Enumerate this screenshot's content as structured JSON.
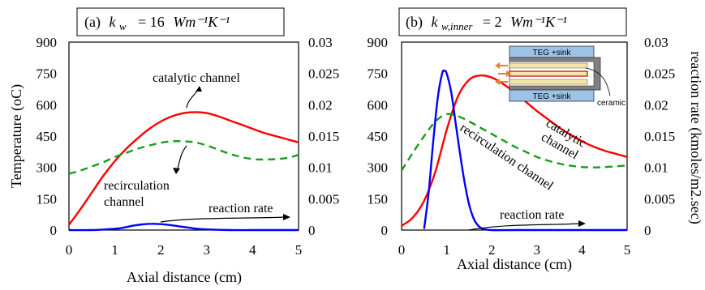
{
  "chart_data": [
    {
      "type": "line",
      "panel_label": "(a)",
      "title_symbol": "k",
      "title_subscript": "w",
      "title_value": "= 16",
      "title_units": "Wm⁻¹K⁻¹",
      "xlabel": "Axial distance (cm)",
      "ylabel": "Temperature (oC)",
      "y2label": "",
      "xlim": [
        0,
        5
      ],
      "ylim": [
        0,
        900
      ],
      "y2lim": [
        0,
        0.03
      ],
      "x_ticks": [
        "0",
        "1",
        "2",
        "3",
        "4",
        "5"
      ],
      "y_ticks": [
        "0",
        "150",
        "300",
        "450",
        "600",
        "750",
        "900"
      ],
      "y2_ticks": [
        "0",
        "0.005",
        "0.01",
        "0.015",
        "0.02",
        "0.025",
        "0.03"
      ],
      "annotations": {
        "catalytic": "catalytic channel",
        "recirc_line1": "recirculation",
        "recirc_line2": "channel",
        "rate": "reaction rate"
      },
      "series": [
        {
          "name": "catalytic channel",
          "axis": "left",
          "color": "#ff0000",
          "dash": "solid",
          "x": [
            0,
            0.25,
            0.5,
            0.75,
            1,
            1.25,
            1.5,
            1.75,
            2,
            2.25,
            2.5,
            2.75,
            3,
            3.25,
            3.5,
            3.75,
            4,
            4.25,
            4.5,
            4.75,
            5
          ],
          "y": [
            25,
            100,
            180,
            260,
            330,
            390,
            440,
            485,
            520,
            545,
            560,
            565,
            560,
            545,
            525,
            505,
            485,
            465,
            450,
            435,
            420
          ]
        },
        {
          "name": "recirculation channel",
          "axis": "left",
          "color": "#1a9c1a",
          "dash": "dashed",
          "x": [
            0,
            0.25,
            0.5,
            0.75,
            1,
            1.25,
            1.5,
            1.75,
            2,
            2.25,
            2.5,
            2.75,
            3,
            3.25,
            3.5,
            3.75,
            4,
            4.25,
            4.5,
            4.75,
            5
          ],
          "y": [
            270,
            285,
            305,
            325,
            350,
            370,
            390,
            405,
            418,
            425,
            425,
            420,
            405,
            385,
            365,
            350,
            340,
            338,
            340,
            345,
            360
          ]
        },
        {
          "name": "reaction rate",
          "axis": "right",
          "color": "#0000ff",
          "dash": "solid",
          "x": [
            0,
            0.5,
            0.8,
            1,
            1.2,
            1.4,
            1.6,
            1.8,
            2,
            2.2,
            2.4,
            2.6,
            2.8,
            3,
            3.5,
            4,
            4.5,
            5
          ],
          "y": [
            0,
            0,
            0.0001,
            0.0002,
            0.0004,
            0.0007,
            0.0009,
            0.001,
            0.00095,
            0.0008,
            0.0006,
            0.0004,
            0.0002,
            0.0001,
            0,
            0,
            0,
            0
          ]
        }
      ]
    },
    {
      "type": "line",
      "panel_label": "(b)",
      "title_symbol": "k",
      "title_subscript": "w,inner",
      "title_value": "= 2",
      "title_units": "Wm⁻¹K⁻¹",
      "xlabel": "Axial distance (cm)",
      "ylabel": "",
      "y2label": "reaction rate (kmoles/m2.sec)",
      "xlim": [
        0,
        5
      ],
      "ylim": [
        0,
        900
      ],
      "y2lim": [
        0,
        0.03
      ],
      "x_ticks": [
        "0",
        "1",
        "2",
        "3",
        "4",
        "5"
      ],
      "y_ticks": [
        "0",
        "150",
        "300",
        "450",
        "600",
        "750",
        "900"
      ],
      "y2_ticks": [
        "0",
        "0.005",
        "0.01",
        "0.015",
        "0.02",
        "0.025",
        "0.03"
      ],
      "annotations": {
        "catalytic_line1": "catalytic",
        "catalytic_line2": "channel",
        "recirc": "recirculation channel",
        "rate": "reaction rate"
      },
      "inset": {
        "top_label": "TEG +sink",
        "bottom_label": "TEG +sink",
        "material_label": "ceramic"
      },
      "series": [
        {
          "name": "catalytic channel",
          "axis": "left",
          "color": "#ff0000",
          "dash": "solid",
          "x": [
            0,
            0.25,
            0.5,
            0.75,
            1,
            1.25,
            1.5,
            1.75,
            2,
            2.25,
            2.5,
            2.75,
            3,
            3.25,
            3.5,
            3.75,
            4,
            4.25,
            4.5,
            4.75,
            5
          ],
          "y": [
            20,
            60,
            140,
            280,
            480,
            640,
            720,
            740,
            730,
            700,
            660,
            615,
            570,
            530,
            490,
            455,
            425,
            400,
            380,
            365,
            350
          ]
        },
        {
          "name": "recirculation channel",
          "axis": "left",
          "color": "#1a9c1a",
          "dash": "dashed",
          "x": [
            0,
            0.25,
            0.5,
            0.75,
            1,
            1.25,
            1.5,
            1.75,
            2,
            2.25,
            2.5,
            2.75,
            3,
            3.25,
            3.5,
            3.75,
            4,
            4.25,
            4.5,
            4.75,
            5
          ],
          "y": [
            285,
            370,
            450,
            520,
            555,
            545,
            520,
            490,
            460,
            430,
            400,
            375,
            350,
            332,
            318,
            308,
            302,
            300,
            302,
            305,
            310
          ]
        },
        {
          "name": "reaction rate",
          "axis": "right",
          "color": "#0000ff",
          "dash": "solid",
          "x": [
            0.5,
            0.6,
            0.7,
            0.8,
            0.9,
            0.95,
            1,
            1.1,
            1.2,
            1.3,
            1.4,
            1.5,
            1.6,
            1.7,
            1.8,
            2,
            2.5,
            3,
            4,
            5
          ],
          "y": [
            0.0002,
            0.006,
            0.014,
            0.021,
            0.025,
            0.0254,
            0.025,
            0.022,
            0.017,
            0.012,
            0.0075,
            0.004,
            0.0018,
            0.0007,
            0.0002,
            0,
            0,
            0,
            0,
            0
          ]
        }
      ]
    }
  ]
}
